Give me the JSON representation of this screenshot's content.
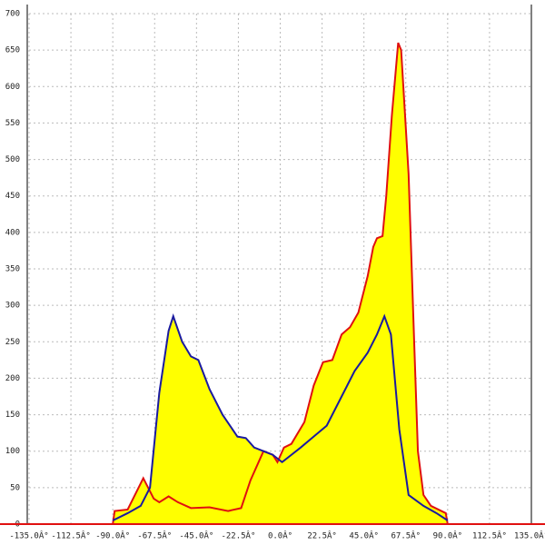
{
  "chart_data": {
    "type": "area",
    "fill": "#ffff00",
    "grid": true,
    "xlim": [
      -135,
      135
    ],
    "ylim": [
      0,
      700
    ],
    "xticks": [
      {
        "value": -135,
        "label": "-135.0Â°"
      },
      {
        "value": -112.5,
        "label": "-112.5Â°"
      },
      {
        "value": -90,
        "label": "-90.0Â°"
      },
      {
        "value": -67.5,
        "label": "-67.5Â°"
      },
      {
        "value": -45,
        "label": "-45.0Â°"
      },
      {
        "value": -22.5,
        "label": "-22.5Â°"
      },
      {
        "value": 0,
        "label": "0.0Â°"
      },
      {
        "value": 22.5,
        "label": "22.5Â°"
      },
      {
        "value": 45,
        "label": "45.0Â°"
      },
      {
        "value": 67.5,
        "label": "67.5Â°"
      },
      {
        "value": 90,
        "label": "90.0Â°"
      },
      {
        "value": 112.5,
        "label": "112.5Â°"
      },
      {
        "value": 135,
        "label": "135.0Â°"
      }
    ],
    "yticks": [
      0,
      50,
      100,
      150,
      200,
      250,
      300,
      350,
      400,
      450,
      500,
      550,
      600,
      650,
      700
    ],
    "series": [
      {
        "color": "#e01010",
        "x": [
          -90,
          -89,
          -82,
          -73.6,
          -68,
          -65,
          -60,
          -55,
          -48,
          -38,
          -28,
          -21,
          -16,
          -9,
          -4,
          -1.5,
          2,
          6,
          13,
          18,
          23,
          28,
          33,
          37.5,
          42,
          47,
          50,
          52,
          55,
          57,
          60,
          63.4,
          65,
          69,
          72,
          74,
          77,
          81,
          89,
          90
        ],
        "values": [
          0,
          18,
          20,
          63,
          35,
          30,
          38,
          30,
          22,
          23,
          18,
          22,
          60,
          100,
          95,
          85,
          105,
          110,
          140,
          190,
          222,
          225,
          260,
          270,
          290,
          340,
          380,
          392,
          395,
          450,
          560,
          660,
          650,
          480,
          250,
          100,
          40,
          25,
          15,
          0
        ]
      },
      {
        "color": "#1a1aa0",
        "x": [
          -90,
          -82,
          -75,
          -70,
          -65,
          -60,
          -57.5,
          -52.7,
          -48,
          -44,
          -38,
          -31,
          -23,
          -18.5,
          -14,
          -9,
          -4,
          1,
          6,
          11,
          18,
          25,
          33,
          40,
          47,
          52,
          56,
          59.5,
          64,
          69,
          77,
          84,
          90
        ],
        "values": [
          5,
          15,
          25,
          50,
          180,
          265,
          285,
          250,
          230,
          225,
          185,
          150,
          120,
          118,
          105,
          100,
          95,
          85,
          95,
          105,
          120,
          135,
          175,
          210,
          235,
          260,
          285,
          260,
          130,
          40,
          25,
          15,
          5
        ]
      }
    ]
  }
}
